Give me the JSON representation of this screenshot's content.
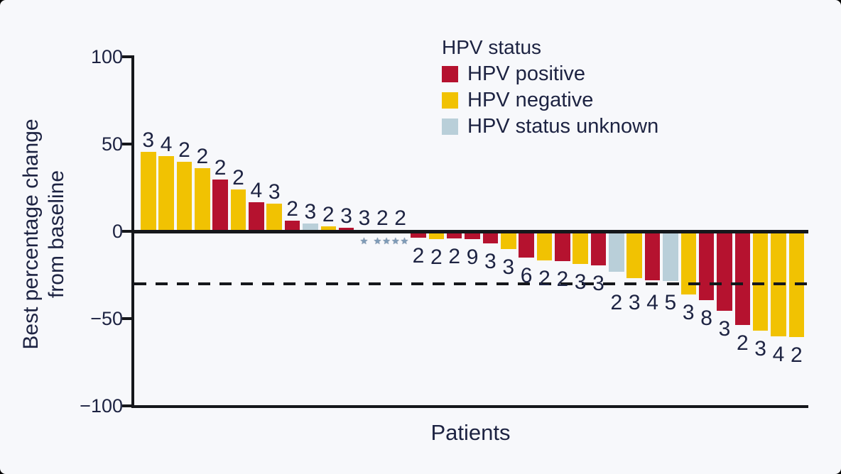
{
  "legend": {
    "title": "HPV status",
    "items": [
      {
        "key": "positive",
        "label": "HPV positive",
        "color": "#b5122f"
      },
      {
        "key": "negative",
        "label": "HPV negative",
        "color": "#f1c202"
      },
      {
        "key": "unknown",
        "label": "HPV status unknown",
        "color": "#b9cfd9"
      }
    ]
  },
  "chart_data": {
    "type": "bar",
    "title": "",
    "xlabel": "Patients",
    "ylabel": "Best percentage change from baseline",
    "ylabel_lines": [
      "Best percentage change",
      "from baseline"
    ],
    "ylim": [
      -100,
      100
    ],
    "grid": false,
    "reference_line_y": -30,
    "yticks": [
      {
        "label": "100",
        "value": 100
      },
      {
        "label": "50",
        "value": 50
      },
      {
        "label": "0",
        "value": 0
      },
      {
        "label": "−50",
        "value": -50
      },
      {
        "label": "−100",
        "value": -100
      }
    ],
    "bars": [
      {
        "value": 45.5,
        "label": "3",
        "hpv": "negative"
      },
      {
        "value": 43,
        "label": "4",
        "hpv": "negative"
      },
      {
        "value": 40,
        "label": "2",
        "hpv": "negative"
      },
      {
        "value": 36,
        "label": "2",
        "hpv": "negative"
      },
      {
        "value": 29.5,
        "label": "2",
        "hpv": "positive"
      },
      {
        "value": 24,
        "label": "2",
        "hpv": "negative"
      },
      {
        "value": 16.5,
        "label": "4",
        "hpv": "positive"
      },
      {
        "value": 16,
        "label": "3",
        "hpv": "negative"
      },
      {
        "value": 6,
        "label": "2",
        "hpv": "positive"
      },
      {
        "value": 4.5,
        "label": "3",
        "hpv": "unknown"
      },
      {
        "value": 3,
        "label": "2",
        "hpv": "negative"
      },
      {
        "value": 2,
        "label": "3",
        "hpv": "positive"
      },
      {
        "value": 0,
        "label": "3",
        "hpv": null,
        "marker": "★"
      },
      {
        "value": 0,
        "label": "2",
        "hpv": null,
        "marker": "★★"
      },
      {
        "value": 0,
        "label": "2",
        "hpv": null,
        "marker": "★★"
      },
      {
        "value": -3.5,
        "label": "2",
        "hpv": "positive"
      },
      {
        "value": -4.5,
        "label": "2",
        "hpv": "negative"
      },
      {
        "value": -4,
        "label": "2",
        "hpv": "positive"
      },
      {
        "value": -4.5,
        "label": "9",
        "hpv": "positive"
      },
      {
        "value": -7,
        "label": "3",
        "hpv": "positive"
      },
      {
        "value": -10,
        "label": "3",
        "hpv": "negative"
      },
      {
        "value": -15,
        "label": "6",
        "hpv": "positive"
      },
      {
        "value": -16.5,
        "label": "2",
        "hpv": "negative"
      },
      {
        "value": -17,
        "label": "2",
        "hpv": "positive"
      },
      {
        "value": -18.5,
        "label": "3",
        "hpv": "negative"
      },
      {
        "value": -19.5,
        "label": "3",
        "hpv": "positive"
      },
      {
        "value": -23,
        "label": "2",
        "hpv": "unknown"
      },
      {
        "value": -27,
        "label": "3",
        "hpv": "negative"
      },
      {
        "value": -28,
        "label": "4",
        "hpv": "positive"
      },
      {
        "value": -28.5,
        "label": "5",
        "hpv": "unknown"
      },
      {
        "value": -36,
        "label": "3",
        "hpv": "negative"
      },
      {
        "value": -39.5,
        "label": "8",
        "hpv": "positive"
      },
      {
        "value": -45.5,
        "label": "3",
        "hpv": "positive"
      },
      {
        "value": -53.5,
        "label": "2",
        "hpv": "positive"
      },
      {
        "value": -57,
        "label": "3",
        "hpv": "negative"
      },
      {
        "value": -60,
        "label": "4",
        "hpv": "negative"
      },
      {
        "value": -60.5,
        "label": "2",
        "hpv": "negative"
      }
    ]
  }
}
